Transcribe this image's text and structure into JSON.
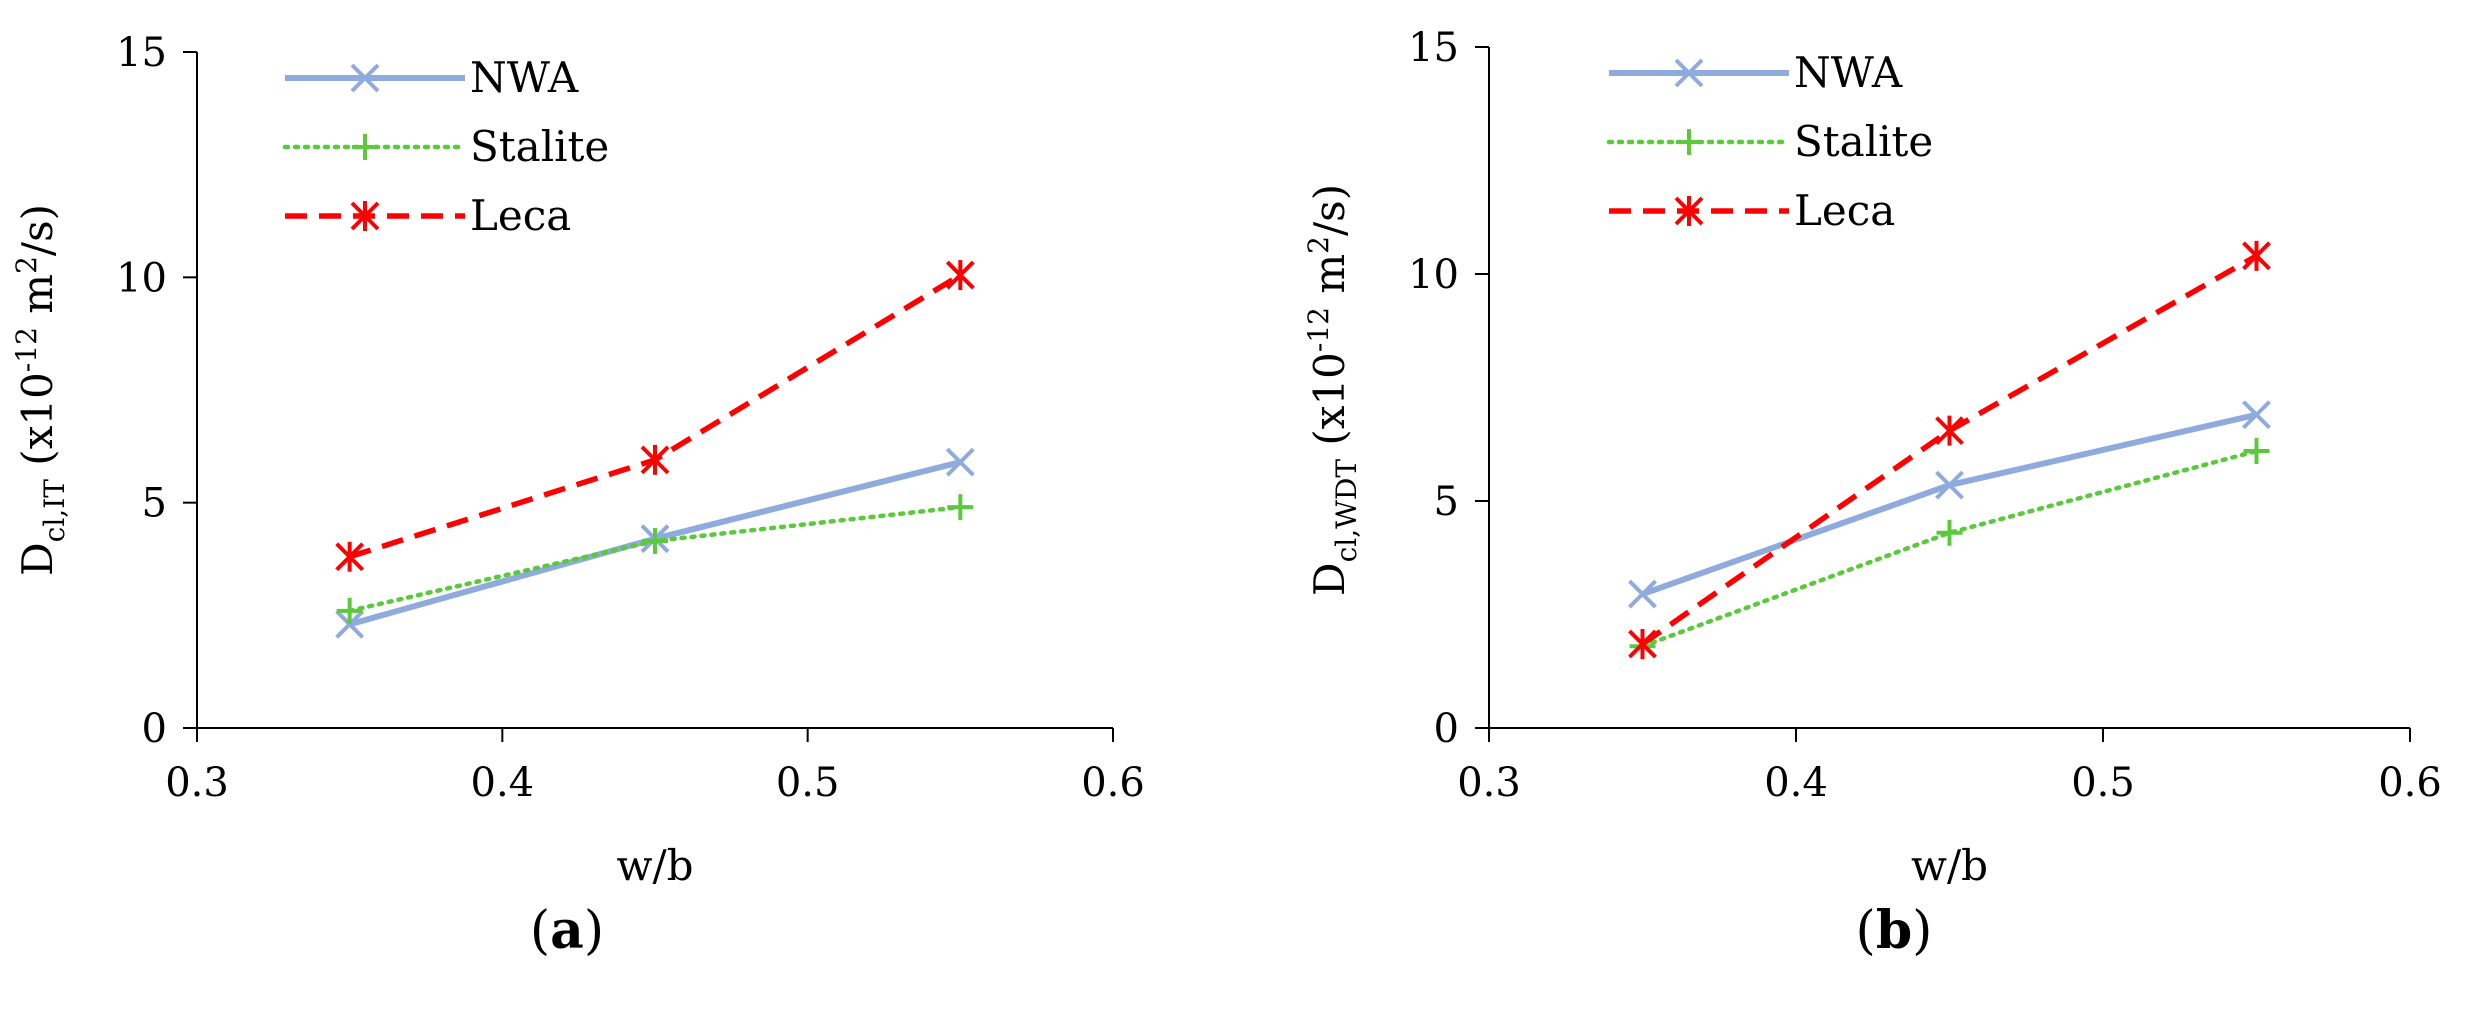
{
  "chart_data": [
    {
      "type": "line",
      "panel_label": "a",
      "title": "",
      "xlabel": "w/b",
      "ylabel": {
        "main": "D",
        "subscript": "cl,IT",
        "unit_before_sup": " (x10",
        "superscript": "-12",
        "unit_mid": " m",
        "superscript2": "2",
        "unit_after": "/s)"
      },
      "xlim": [
        0.3,
        0.6
      ],
      "ylim": [
        0,
        15
      ],
      "xticks": [
        "0.3",
        "0.4",
        "0.5",
        "0.6"
      ],
      "yticks": [
        "0",
        "5",
        "10",
        "15"
      ],
      "x": [
        0.35,
        0.45,
        0.55
      ],
      "legend_position": "top-left",
      "series": [
        {
          "name": "NWA",
          "values": [
            2.3,
            4.2,
            5.9
          ],
          "color": "#8faadc",
          "marker": "x",
          "dash": "solid"
        },
        {
          "name": "Stalite",
          "values": [
            2.6,
            4.15,
            4.9
          ],
          "color": "#5cc83c",
          "marker": "+",
          "dash": "dotted"
        },
        {
          "name": "Leca",
          "values": [
            3.8,
            5.95,
            10.05
          ],
          "color": "#ff0000",
          "marker": "star",
          "dash": "dashed"
        }
      ]
    },
    {
      "type": "line",
      "panel_label": "b",
      "title": "",
      "xlabel": "w/b",
      "ylabel": {
        "main": "D",
        "subscript": "cl,WDT",
        "unit_before_sup": " (x10",
        "superscript": "-12",
        "unit_mid": " m",
        "superscript2": "2",
        "unit_after": "/s)"
      },
      "xlim": [
        0.3,
        0.6
      ],
      "ylim": [
        0,
        15
      ],
      "xticks": [
        "0.3",
        "0.4",
        "0.5",
        "0.6"
      ],
      "yticks": [
        "0",
        "5",
        "10",
        "15"
      ],
      "x": [
        0.35,
        0.45,
        0.55
      ],
      "legend_position": "top-left",
      "series": [
        {
          "name": "NWA",
          "values": [
            2.95,
            5.35,
            6.9
          ],
          "color": "#8faadc",
          "marker": "x",
          "dash": "solid"
        },
        {
          "name": "Stalite",
          "values": [
            1.8,
            4.3,
            6.1
          ],
          "color": "#5cc83c",
          "marker": "+",
          "dash": "dotted"
        },
        {
          "name": "Leca",
          "values": [
            1.85,
            6.55,
            10.4
          ],
          "color": "#ff0000",
          "marker": "star",
          "dash": "dashed"
        }
      ]
    }
  ]
}
